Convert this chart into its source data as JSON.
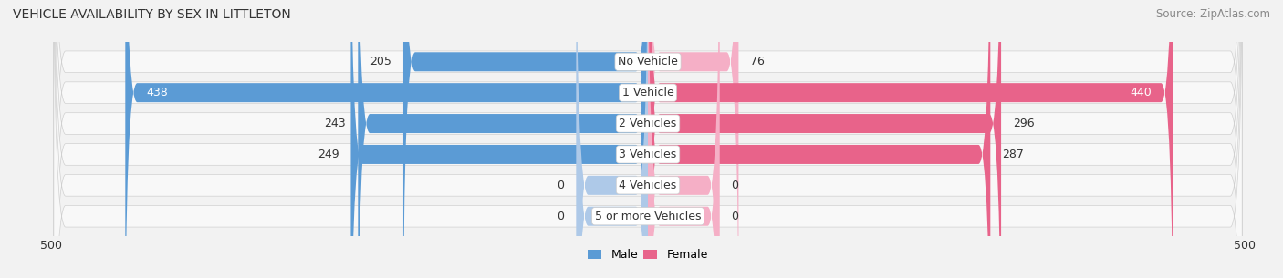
{
  "title": "VEHICLE AVAILABILITY BY SEX IN LITTLETON",
  "source": "Source: ZipAtlas.com",
  "categories": [
    "No Vehicle",
    "1 Vehicle",
    "2 Vehicles",
    "3 Vehicles",
    "4 Vehicles",
    "5 or more Vehicles"
  ],
  "male_values": [
    205,
    438,
    243,
    249,
    0,
    0
  ],
  "female_values": [
    76,
    440,
    296,
    287,
    0,
    0
  ],
  "male_color_large": "#5b9bd5",
  "male_color_small": "#aec9e8",
  "female_color_large": "#e8638a",
  "female_color_small": "#f5afc6",
  "male_label": "Male",
  "female_label": "Female",
  "xlim": 500,
  "bg_color": "#f2f2f2",
  "row_bg_color": "#ffffff",
  "row_bg_edge": "#d8d8d8",
  "title_fontsize": 10,
  "source_fontsize": 8.5,
  "value_fontsize": 9,
  "category_fontsize": 9,
  "small_bar_default": 60
}
